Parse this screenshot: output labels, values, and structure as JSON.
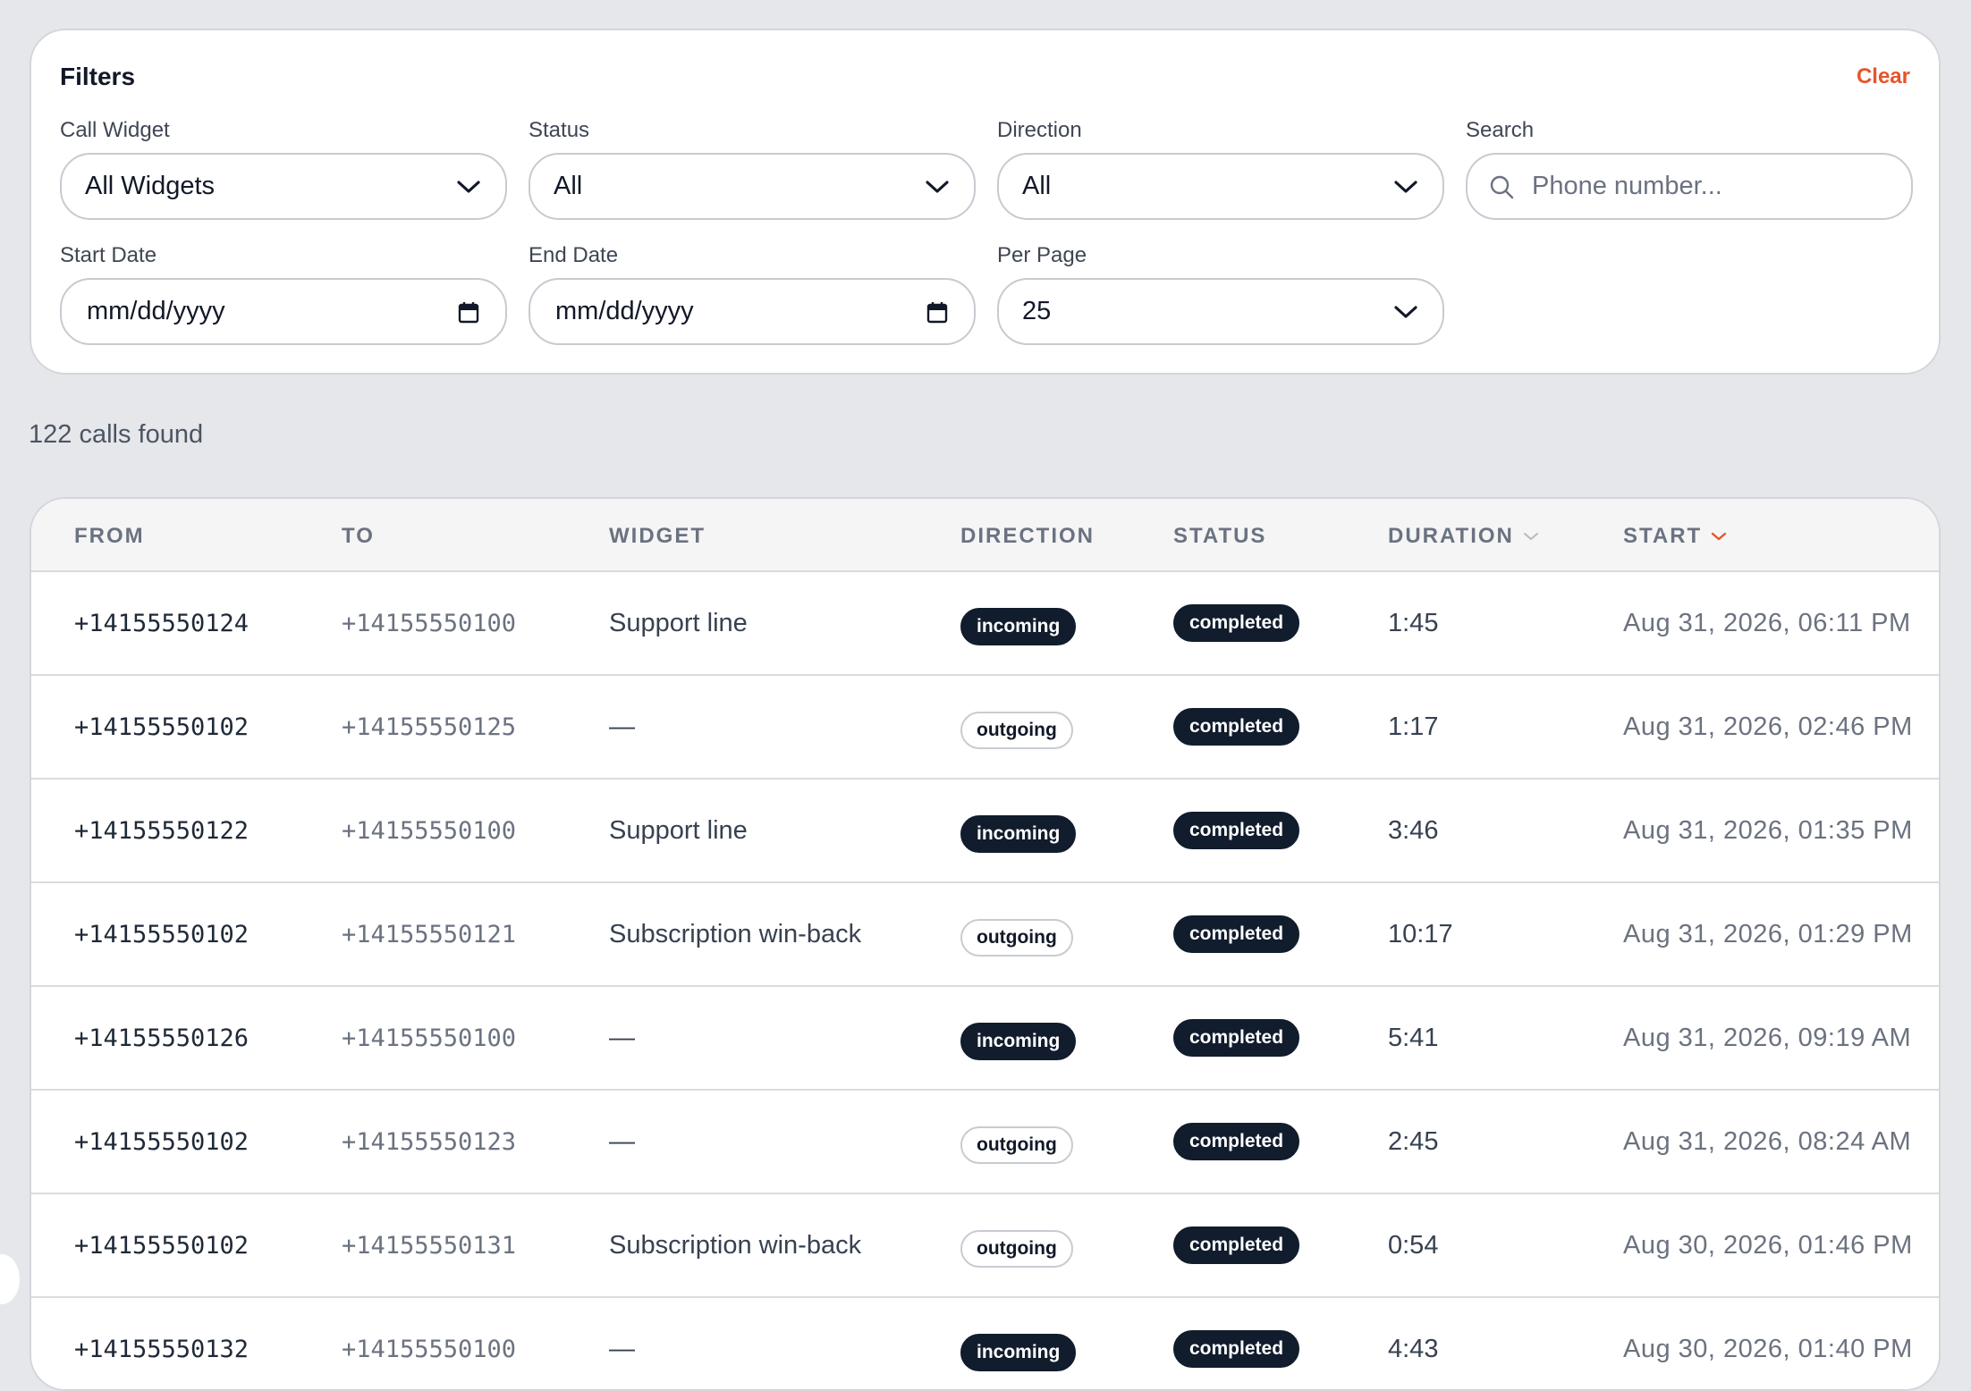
{
  "filters": {
    "title": "Filters",
    "clear_label": "Clear",
    "call_widget": {
      "label": "Call Widget",
      "value": "All Widgets"
    },
    "status": {
      "label": "Status",
      "value": "All"
    },
    "direction": {
      "label": "Direction",
      "value": "All"
    },
    "search": {
      "label": "Search",
      "placeholder": "Phone number..."
    },
    "start_date": {
      "label": "Start Date",
      "value": "mm/dd/yyyy"
    },
    "end_date": {
      "label": "End Date",
      "value": "mm/dd/yyyy"
    },
    "per_page": {
      "label": "Per Page",
      "value": "25"
    }
  },
  "results": {
    "count_text": "122 calls found"
  },
  "table": {
    "columns": {
      "from": "FROM",
      "to": "TO",
      "widget": "WIDGET",
      "direction": "DIRECTION",
      "status": "STATUS",
      "duration": "DURATION",
      "start": "START"
    },
    "rows": [
      {
        "from": "+14155550124",
        "to": "+14155550100",
        "widget": "Support line",
        "direction": "incoming",
        "status": "completed",
        "duration": "1:45",
        "start": "Aug 31, 2026, 06:11 PM"
      },
      {
        "from": "+14155550102",
        "to": "+14155550125",
        "widget": "—",
        "direction": "outgoing",
        "status": "completed",
        "duration": "1:17",
        "start": "Aug 31, 2026, 02:46 PM"
      },
      {
        "from": "+14155550122",
        "to": "+14155550100",
        "widget": "Support line",
        "direction": "incoming",
        "status": "completed",
        "duration": "3:46",
        "start": "Aug 31, 2026, 01:35 PM"
      },
      {
        "from": "+14155550102",
        "to": "+14155550121",
        "widget": "Subscription win-back",
        "direction": "outgoing",
        "status": "completed",
        "duration": "10:17",
        "start": "Aug 31, 2026, 01:29 PM"
      },
      {
        "from": "+14155550126",
        "to": "+14155550100",
        "widget": "—",
        "direction": "incoming",
        "status": "completed",
        "duration": "5:41",
        "start": "Aug 31, 2026, 09:19 AM"
      },
      {
        "from": "+14155550102",
        "to": "+14155550123",
        "widget": "—",
        "direction": "outgoing",
        "status": "completed",
        "duration": "2:45",
        "start": "Aug 31, 2026, 08:24 AM"
      },
      {
        "from": "+14155550102",
        "to": "+14155550131",
        "widget": "Subscription win-back",
        "direction": "outgoing",
        "status": "completed",
        "duration": "0:54",
        "start": "Aug 30, 2026, 01:46 PM"
      },
      {
        "from": "+14155550132",
        "to": "+14155550100",
        "widget": "—",
        "direction": "incoming",
        "status": "completed",
        "duration": "4:43",
        "start": "Aug 30, 2026, 01:40 PM"
      }
    ]
  },
  "icons": {
    "select": "chevron-down-icon",
    "date": "calendar-icon",
    "search": "search-icon",
    "sort": "chevron-down-icon"
  },
  "colors": {
    "accent": "#e8542b",
    "dark_pill": "#111c2d",
    "page_bg": "#e6e7ea"
  }
}
